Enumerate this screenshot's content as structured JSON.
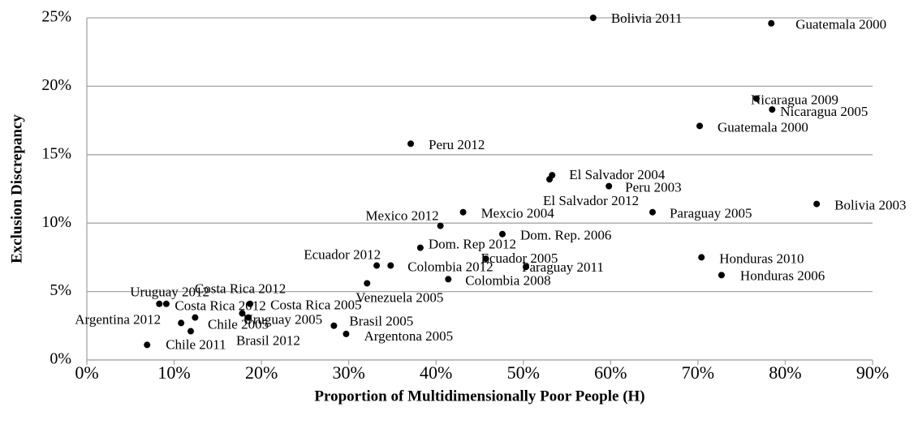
{
  "chart_data": {
    "type": "scatter",
    "xlabel": "Proportion of Multidimensionally Poor People (H)",
    "ylabel": "Exclusion Discrepancy",
    "series": [
      {
        "color": "#000000",
        "point_labels": [
          "Bolivia 2011",
          "Guatemala 2000",
          "Nicaragua 2009",
          "Nicaragua 2005",
          "Guatemala 2000",
          "Peru 2012",
          "El Salvador 2004",
          "El Salvador 2012",
          "Peru 2003",
          "Bolivia 2003",
          "Paraguay 2005",
          "Mexico 2012",
          "Mexcio 2004",
          "Dom. Rep. 2006",
          "Dom. Rep 2012",
          "Honduras 2010",
          "Ecuador 2012",
          "Ecuador 2005",
          "Colombia 2012",
          "Paraguay 2011",
          "Honduras 2006",
          "Colombia 2008",
          "Venezuela 2005",
          "Uruguay 2012",
          "Costa Rica 2012",
          "Costa Rica 2012",
          "Costa Rica 2005",
          "Uruguay 2005",
          "Brasil 2012",
          "Argentina 2012",
          "Chile 2005",
          "Brasil 2005",
          "Argentona 2005",
          "Chile 2011"
        ],
        "x": [
          58.0,
          78.4,
          76.7,
          78.5,
          70.2,
          37.1,
          53.3,
          53.0,
          59.8,
          83.6,
          64.8,
          40.5,
          43.1,
          47.6,
          38.2,
          70.4,
          33.2,
          45.7,
          34.8,
          50.3,
          72.7,
          41.4,
          32.1,
          8.3,
          9.1,
          12.4,
          18.7,
          17.8,
          18.5,
          10.8,
          11.9,
          28.3,
          29.7,
          6.9
        ],
        "values": [
          25.0,
          24.6,
          19.1,
          18.3,
          17.1,
          15.8,
          13.5,
          13.2,
          12.7,
          11.4,
          10.8,
          9.8,
          10.8,
          9.2,
          8.2,
          7.5,
          6.9,
          7.4,
          6.9,
          6.8,
          6.2,
          5.9,
          5.6,
          4.1,
          4.1,
          3.1,
          4.1,
          3.4,
          3.1,
          2.7,
          2.1,
          2.5,
          1.9,
          1.1
        ]
      }
    ],
    "xlim": [
      0,
      90
    ],
    "xticks": [
      {
        "value": 0,
        "label": "0%"
      },
      {
        "value": 10,
        "label": "10%"
      },
      {
        "value": 20,
        "label": "20%"
      },
      {
        "value": 30,
        "label": "30%"
      },
      {
        "value": 40,
        "label": "40%"
      },
      {
        "value": 50,
        "label": "50%"
      },
      {
        "value": 60,
        "label": "60%"
      },
      {
        "value": 70,
        "label": "70%"
      },
      {
        "value": 80,
        "label": "80%"
      },
      {
        "value": 90,
        "label": "90%"
      }
    ],
    "ylim": [
      0,
      25
    ],
    "yticks": [
      {
        "value": 0,
        "label": "0%"
      },
      {
        "value": 5,
        "label": "5%"
      },
      {
        "value": 10,
        "label": "10%"
      },
      {
        "value": 15,
        "label": "15%"
      },
      {
        "value": 20,
        "label": "20%"
      },
      {
        "value": 25,
        "label": "25%"
      }
    ],
    "grid": true
  }
}
